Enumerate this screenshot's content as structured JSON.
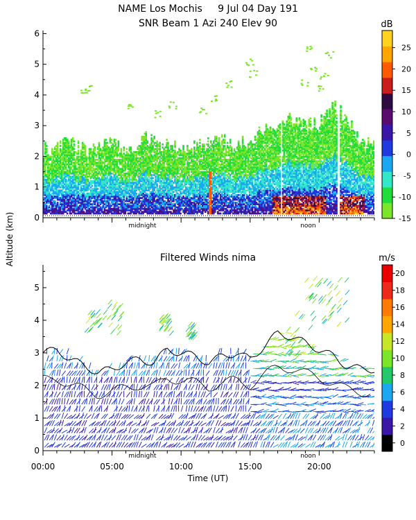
{
  "title_line1": "NAME Los Mochis     9 Jul 04 Day 191",
  "title_line2": "SNR Beam 1 Azi 240 Elev 90",
  "shared_ylabel": "Altitude (km)",
  "chart_data": [
    {
      "type": "heatmap",
      "title": "SNR Beam 1 Azi 240 Elev 90",
      "ylabel": "Altitude (km)",
      "ylim": [
        0,
        6.1
      ],
      "xlim": [
        0,
        24
      ],
      "y_ticks": [
        "0",
        "1",
        "2",
        "3",
        "4",
        "5",
        "6"
      ],
      "x_annotations": [
        {
          "label": "midnight",
          "x": 7.2
        },
        {
          "label": "noon",
          "x": 19.2
        }
      ],
      "colorbar": {
        "title": "dB",
        "ticks": [
          "25",
          "20",
          "15",
          "10",
          "5",
          "0",
          "-5",
          "-10",
          "-15"
        ],
        "range": [
          -15,
          29
        ]
      },
      "echo_tops_km": [
        2.2,
        2.3,
        2.4,
        2.2,
        2.3,
        2.4,
        2.2,
        2.5,
        2.6,
        2.4,
        2.2,
        2.3,
        2.4,
        2.5,
        2.3,
        2.6,
        2.8,
        3.0,
        3.2,
        3.0,
        3.1,
        3.6,
        3.2,
        2.4
      ]
    },
    {
      "type": "heatmap",
      "title": "Filtered Winds nima",
      "ylabel": "Altitude (km)",
      "xlabel": "Time (UT)",
      "ylim": [
        0,
        5.7
      ],
      "xlim": [
        0,
        24
      ],
      "y_ticks": [
        "0",
        "1",
        "2",
        "3",
        "4",
        "5"
      ],
      "x_ticks": [
        "00:00",
        "05:00",
        "10:00",
        "15:00",
        "20:00"
      ],
      "x_tick_values": [
        0,
        5,
        10,
        15,
        20
      ],
      "x_annotations": [
        {
          "label": "midnight",
          "x": 7.2
        },
        {
          "label": "noon",
          "x": 19.2
        }
      ],
      "colorbar": {
        "title": "m/s",
        "ticks": [
          "20",
          "18",
          "16",
          "14",
          "12",
          "10",
          "8",
          "6",
          "4",
          "2",
          "0"
        ],
        "range": [
          0,
          22
        ]
      },
      "wind_tops_km": [
        3.0,
        3.1,
        2.8,
        2.6,
        2.4,
        2.5,
        2.7,
        2.8,
        2.7,
        3.1,
        3.0,
        2.9,
        2.7,
        2.9,
        3.0,
        2.8,
        3.2,
        3.6,
        3.5,
        3.3,
        3.1,
        2.9,
        2.6,
        2.5
      ]
    }
  ]
}
